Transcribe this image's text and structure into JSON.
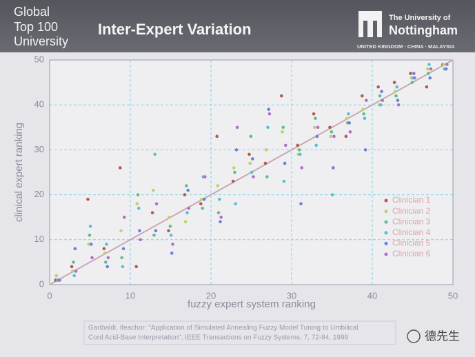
{
  "header": {
    "badge": [
      "Global",
      "Top 100",
      "University"
    ],
    "title": "Inter-Expert Variation",
    "logo": [
      "The University of",
      "Nottingham"
    ],
    "tagline": "UNITED KINGDOM · CHINA · MALAYSIA"
  },
  "chart_data": {
    "type": "scatter",
    "xlabel": "fuzzy expert system ranking",
    "ylabel": "clinical expert ranking",
    "xlim": [
      0,
      50
    ],
    "ylim": [
      0,
      50
    ],
    "xticks": [
      0,
      10,
      20,
      30,
      40,
      50
    ],
    "yticks": [
      0,
      10,
      20,
      30,
      40,
      50
    ],
    "grid": true,
    "legend": "lower right",
    "x": [
      1,
      3,
      5,
      7,
      9,
      11,
      13,
      15,
      17,
      19,
      21,
      23,
      25,
      27,
      29,
      31,
      33,
      35,
      37,
      39,
      41,
      43,
      45,
      47,
      49
    ],
    "series": [
      {
        "name": "Clinician 1",
        "color": "#b8584e",
        "values": [
          1,
          4,
          19,
          8,
          26,
          4,
          16,
          12,
          20,
          18,
          33,
          23,
          29,
          27,
          42,
          31,
          38,
          35,
          33,
          42,
          44,
          45,
          47,
          44,
          49
        ]
      },
      {
        "name": "Clinician 2",
        "color": "#b9d36a",
        "values": [
          2,
          3,
          9,
          7,
          12,
          18,
          21,
          15,
          14,
          19,
          22,
          26,
          27,
          30,
          34,
          29,
          35,
          33,
          37,
          39,
          40,
          43,
          46,
          48,
          49
        ]
      },
      {
        "name": "Clinician 3",
        "color": "#5cc084",
        "values": [
          1,
          5,
          11,
          5,
          6,
          20,
          11,
          13,
          22,
          17,
          16,
          25,
          33,
          24,
          35,
          30,
          37,
          34,
          36,
          38,
          42,
          42,
          45,
          47,
          48
        ]
      },
      {
        "name": "Clinician 4",
        "color": "#4fc3d8",
        "values": [
          1,
          2,
          13,
          9,
          4,
          17,
          29,
          11,
          16,
          24,
          19,
          18,
          25,
          35,
          23,
          29,
          31,
          20,
          38,
          37,
          40,
          44,
          46,
          49,
          48
        ]
      },
      {
        "name": "Clinician 5",
        "color": "#6c7fd8",
        "values": [
          1,
          8,
          9,
          4,
          8,
          12,
          12,
          7,
          21,
          19,
          14,
          30,
          28,
          39,
          27,
          18,
          33,
          26,
          36,
          30,
          43,
          41,
          47,
          46,
          48
        ]
      },
      {
        "name": "Clinician 6",
        "color": "#b06fc4",
        "values": [
          1,
          3,
          6,
          6,
          15,
          10,
          18,
          9,
          17,
          24,
          15,
          35,
          24,
          38,
          31,
          26,
          35,
          33,
          34,
          41,
          41,
          40,
          46,
          48,
          49
        ]
      }
    ]
  },
  "citation": [
    "Garibaldi, Ifeachor: \"Application of Simulated Annealing Fuzzy Model Tuning to Umbilical",
    "Cord Acid-Base Interpretation\", IEEE Transactions on Fuzzy Systems, 7, 72-84, 1999"
  ],
  "watermark": "德先生"
}
